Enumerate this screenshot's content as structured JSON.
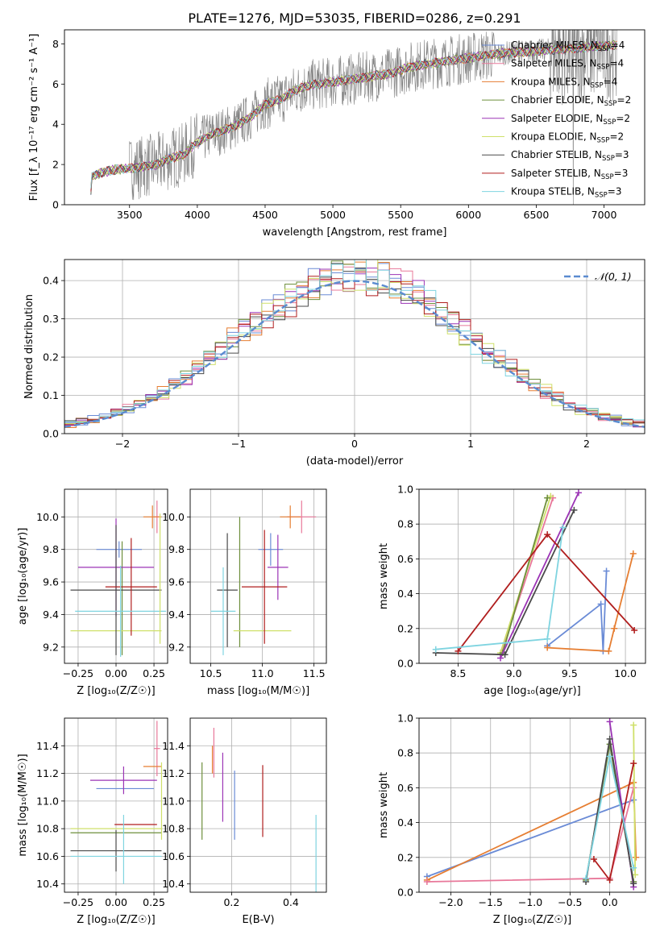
{
  "figure_title": "PLATE=1276, MJD=53035, FIBERID=0286, z=0.291",
  "chart_data": [
    {
      "id": "spectrum",
      "type": "line",
      "xlabel": "wavelength [Angstrom, rest frame]",
      "ylabel": "Flux [f_λ 10⁻¹⁷ erg cm⁻² s⁻¹ A⁻¹]",
      "xlim": [
        3020,
        7300
      ],
      "ylim": [
        0,
        8.7
      ],
      "xticks": [
        "3500",
        "4000",
        "4500",
        "5000",
        "5500",
        "6000",
        "6500",
        "7000"
      ],
      "yticks": [
        "0",
        "2",
        "4",
        "6",
        "8"
      ],
      "grid": false,
      "legend": "right",
      "data_color": "#808080",
      "data_points": [
        [
          3210,
          0
        ],
        [
          3220,
          1.4
        ],
        [
          3300,
          1.6
        ],
        [
          3400,
          1.75
        ],
        [
          3500,
          1.8
        ],
        [
          3600,
          1.9
        ],
        [
          3700,
          2.0
        ],
        [
          3800,
          2.3
        ],
        [
          3900,
          2.5
        ],
        [
          4000,
          3.1
        ],
        [
          4100,
          3.5
        ],
        [
          4200,
          3.7
        ],
        [
          4300,
          4.0
        ],
        [
          4400,
          4.4
        ],
        [
          4500,
          5.0
        ],
        [
          4600,
          5.2
        ],
        [
          4700,
          5.6
        ],
        [
          4800,
          5.9
        ],
        [
          4900,
          6.0
        ],
        [
          5000,
          6.1
        ],
        [
          5100,
          6.2
        ],
        [
          5200,
          6.3
        ],
        [
          5300,
          6.4
        ],
        [
          5400,
          6.5
        ],
        [
          5500,
          6.7
        ],
        [
          5600,
          6.9
        ],
        [
          5700,
          7.0
        ],
        [
          5800,
          7.1
        ],
        [
          5900,
          7.2
        ],
        [
          6000,
          7.3
        ],
        [
          6100,
          7.4
        ],
        [
          6200,
          7.5
        ],
        [
          6300,
          7.55
        ],
        [
          6400,
          7.6
        ],
        [
          6500,
          7.65
        ],
        [
          6600,
          7.7
        ],
        [
          6700,
          7.75
        ],
        [
          6800,
          7.8
        ],
        [
          6900,
          7.85
        ],
        [
          7000,
          7.9
        ],
        [
          7100,
          7.95
        ]
      ],
      "series": [
        {
          "label_plain": "Chabrier MILES, N",
          "sub": "SSP",
          "suffix": "=4",
          "color": "#6a8bd6"
        },
        {
          "label_plain": "Salpeter MILES, N",
          "sub": "SSP",
          "suffix": "=4",
          "color": "#e8789a"
        },
        {
          "label_plain": "Kroupa MILES, N",
          "sub": "SSP",
          "suffix": "=4",
          "color": "#e67e32"
        },
        {
          "label_plain": "Chabrier ELODIE, N",
          "sub": "SSP",
          "suffix": "=2",
          "color": "#6e8f3c"
        },
        {
          "label_plain": "Salpeter ELODIE, N",
          "sub": "SSP",
          "suffix": "=2",
          "color": "#9b33b5"
        },
        {
          "label_plain": "Kroupa ELODIE, N",
          "sub": "SSP",
          "suffix": "=2",
          "color": "#cfe06a"
        },
        {
          "label_plain": "Chabrier STELIB, N",
          "sub": "SSP",
          "suffix": "=3",
          "color": "#4a4a4a"
        },
        {
          "label_plain": "Salpeter STELIB, N",
          "sub": "SSP",
          "suffix": "=3",
          "color": "#b01e1e"
        },
        {
          "label_plain": "Kroupa STELIB, N",
          "sub": "SSP",
          "suffix": "=3",
          "color": "#7fd4e0"
        }
      ]
    },
    {
      "id": "residuals",
      "type": "histogram",
      "xlabel": "(data-model)/error",
      "ylabel": "Normed distribution",
      "xlim": [
        -2.5,
        2.5
      ],
      "ylim": [
        0,
        0.455
      ],
      "xticks": [
        "−2",
        "−1",
        "0",
        "1",
        "2"
      ],
      "yticks": [
        "0.0",
        "0.1",
        "0.2",
        "0.3",
        "0.4"
      ],
      "grid": true,
      "legend": "top-right",
      "normal_label": "𝒩(0, 1)",
      "normal_color": "#5b8bd0",
      "bins": [
        -2.5,
        2.5,
        50
      ]
    },
    {
      "id": "age_vs_Z",
      "type": "errorbar",
      "xlabel": "Z [log₁₀(Z/Z☉)]",
      "ylabel": "age  [log₁₀(age/yr)]",
      "xlim": [
        -0.34,
        0.34
      ],
      "ylim": [
        9.1,
        10.17
      ],
      "xticks": [
        "−0.25",
        "0.00",
        "0.25"
      ],
      "yticks": [
        "9.2",
        "9.4",
        "9.6",
        "9.8",
        "10.0"
      ],
      "grid": true,
      "points": [
        {
          "color": "#6a8bd6",
          "x": 0.02,
          "xerr": 0.15,
          "y": 9.8,
          "yerr": 0.05
        },
        {
          "color": "#e8789a",
          "x": 0.27,
          "xerr": 0.02,
          "y": 10.0,
          "yerr": 0.1
        },
        {
          "color": "#e67e32",
          "x": 0.24,
          "xerr": 0.06,
          "y": 10.0,
          "yerr": 0.07
        },
        {
          "color": "#6e8f3c",
          "x": 0.04,
          "xerr": 0.0,
          "y": 9.5,
          "yerr": 0.35
        },
        {
          "color": "#9b33b5",
          "x": 0.0,
          "xerr": 0.25,
          "y": 9.69,
          "yerr": 0.3
        },
        {
          "color": "#cfe06a",
          "x": 0.0,
          "xerr": 0.3,
          "y": 9.3,
          "yerr": 0.0
        },
        {
          "color": "#4a4a4a",
          "x": 0.0,
          "xerr": 0.3,
          "y": 9.55,
          "yerr": 0.4
        },
        {
          "color": "#b01e1e",
          "x": 0.1,
          "xerr": 0.17,
          "y": 9.57,
          "yerr": 0.3
        },
        {
          "color": "#7fd4e0",
          "x": 0.03,
          "xerr": 0.3,
          "y": 9.42,
          "yerr": 0.28
        },
        {
          "color": "#cfe06a",
          "x": 0.29,
          "xerr": 0.0,
          "y": 9.62,
          "yerr": 0.4
        }
      ]
    },
    {
      "id": "age_vs_mass",
      "type": "errorbar",
      "xlabel": "mass [log₁₀(M/M☉)]",
      "ylabel": "",
      "xlim": [
        10.3,
        11.62
      ],
      "ylim": [
        9.1,
        10.17
      ],
      "xticks": [
        "10.5",
        "11.0",
        "11.5"
      ],
      "yticks": [
        "9.2",
        "9.4",
        "9.6",
        "9.8",
        "10.0"
      ],
      "grid": true,
      "points": [
        {
          "color": "#6a8bd6",
          "x": 11.08,
          "xerr": 0.12,
          "y": 9.8,
          "yerr": 0.1
        },
        {
          "color": "#e8789a",
          "x": 11.38,
          "xerr": 0.14,
          "y": 10.0,
          "yerr": 0.1
        },
        {
          "color": "#e67e32",
          "x": 11.27,
          "xerr": 0.1,
          "y": 10.0,
          "yerr": 0.07
        },
        {
          "color": "#6e8f3c",
          "x": 10.78,
          "xerr": 0.0,
          "y": 9.6,
          "yerr": 0.4
        },
        {
          "color": "#9b33b5",
          "x": 11.15,
          "xerr": 0.1,
          "y": 9.69,
          "yerr": 0.2
        },
        {
          "color": "#cfe06a",
          "x": 11.0,
          "xerr": 0.28,
          "y": 9.3,
          "yerr": 0.0
        },
        {
          "color": "#4a4a4a",
          "x": 10.66,
          "xerr": 0.1,
          "y": 9.55,
          "yerr": 0.35
        },
        {
          "color": "#b01e1e",
          "x": 11.02,
          "xerr": 0.22,
          "y": 9.57,
          "yerr": 0.35
        },
        {
          "color": "#7fd4e0",
          "x": 10.62,
          "xerr": 0.12,
          "y": 9.42,
          "yerr": 0.27
        }
      ]
    },
    {
      "id": "weight_vs_age",
      "type": "line",
      "xlabel": "age  [log₁₀(age/yr)]",
      "ylabel": "mass weight",
      "xlim": [
        8.15,
        10.18
      ],
      "ylim": [
        0.0,
        1.0
      ],
      "xticks": [
        "8.5",
        "9.0",
        "9.5",
        "10.0"
      ],
      "yticks": [
        "0.0",
        "0.2",
        "0.4",
        "0.6",
        "0.8",
        "1.0"
      ],
      "grid": true,
      "series": [
        {
          "color": "#6a8bd6",
          "points": [
            [
              9.3,
              0.1
            ],
            [
              9.78,
              0.34
            ],
            [
              9.8,
              0.07
            ],
            [
              9.83,
              0.53
            ]
          ]
        },
        {
          "color": "#e67e32",
          "points": [
            [
              9.3,
              0.09
            ],
            [
              9.85,
              0.07
            ],
            [
              9.9,
              0.2
            ],
            [
              10.07,
              0.63
            ]
          ]
        },
        {
          "color": "#e8789a",
          "points": [
            [
              8.88,
              0.05
            ],
            [
              9.35,
              0.95
            ]
          ]
        },
        {
          "color": "#cfe06a",
          "points": [
            [
              8.88,
              0.06
            ],
            [
              9.33,
              0.96
            ]
          ]
        },
        {
          "color": "#6e8f3c",
          "points": [
            [
              8.9,
              0.06
            ],
            [
              9.3,
              0.95
            ]
          ]
        },
        {
          "color": "#9b33b5",
          "points": [
            [
              8.88,
              0.03
            ],
            [
              9.58,
              0.98
            ]
          ]
        },
        {
          "color": "#4a4a4a",
          "points": [
            [
              8.3,
              0.06
            ],
            [
              8.92,
              0.05
            ],
            [
              9.54,
              0.88
            ]
          ]
        },
        {
          "color": "#b01e1e",
          "points": [
            [
              8.5,
              0.07
            ],
            [
              9.3,
              0.74
            ],
            [
              10.08,
              0.19
            ]
          ]
        },
        {
          "color": "#7fd4e0",
          "points": [
            [
              8.3,
              0.08
            ],
            [
              9.3,
              0.14
            ],
            [
              9.44,
              0.78
            ]
          ]
        }
      ]
    },
    {
      "id": "mass_vs_Z",
      "type": "errorbar",
      "xlabel": "Z [log₁₀(Z/Z☉)]",
      "ylabel": "mass [log₁₀(M/M☉)]",
      "xlim": [
        -0.34,
        0.34
      ],
      "ylim": [
        10.34,
        11.6
      ],
      "xticks": [
        "−0.25",
        "0.00",
        "0.25"
      ],
      "yticks": [
        "10.4",
        "10.6",
        "10.8",
        "11.0",
        "11.2",
        "11.4"
      ],
      "grid": true,
      "points": [
        {
          "color": "#6a8bd6",
          "x": 0.06,
          "xerr": 0.19,
          "y": 11.09,
          "yerr": 0.0
        },
        {
          "color": "#e8789a",
          "x": 0.27,
          "xerr": 0.02,
          "y": 11.38,
          "yerr": 0.2
        },
        {
          "color": "#e67e32",
          "x": 0.24,
          "xerr": 0.06,
          "y": 11.25,
          "yerr": 0.0
        },
        {
          "color": "#6e8f3c",
          "x": 0.0,
          "xerr": 0.3,
          "y": 10.77,
          "yerr": 0.0
        },
        {
          "color": "#9b33b5",
          "x": 0.05,
          "xerr": 0.22,
          "y": 11.15,
          "yerr": 0.1
        },
        {
          "color": "#cfe06a",
          "x": 0.0,
          "xerr": 0.3,
          "y": 10.8,
          "yerr": 0.0
        },
        {
          "color": "#4a4a4a",
          "x": 0.0,
          "xerr": 0.3,
          "y": 10.64,
          "yerr": 0.15
        },
        {
          "color": "#b01e1e",
          "x": 0.13,
          "xerr": 0.14,
          "y": 10.83,
          "yerr": 0.0
        },
        {
          "color": "#7fd4e0",
          "x": 0.0,
          "xerr": 0.3,
          "y": 10.6,
          "yerr": 0.0
        },
        {
          "color": "#7fd4e0",
          "x": 0.05,
          "xerr": 0.0,
          "y": 10.65,
          "yerr": 0.25
        },
        {
          "color": "#cfe06a",
          "x": 0.3,
          "xerr": 0.0,
          "y": 11.0,
          "yerr": 0.28
        }
      ]
    },
    {
      "id": "mass_vs_ebv",
      "type": "errorbar",
      "xlabel": "E(B-V)",
      "ylabel": "",
      "xlim": [
        0.06,
        0.52
      ],
      "ylim": [
        10.34,
        11.6
      ],
      "xticks": [
        "0.2",
        "0.4"
      ],
      "yticks": [
        "10.4",
        "10.6",
        "10.8",
        "11.0",
        "11.2",
        "11.4"
      ],
      "grid": true,
      "points": [
        {
          "color": "#6e8f3c",
          "x": 0.1,
          "xerr": 0.0,
          "y": 11.0,
          "yerr": 0.28
        },
        {
          "color": "#e8789a",
          "x": 0.14,
          "xerr": 0.0,
          "y": 11.35,
          "yerr": 0.18
        },
        {
          "color": "#e67e32",
          "x": 0.135,
          "xerr": 0.0,
          "y": 11.3,
          "yerr": 0.1
        },
        {
          "color": "#9b33b5",
          "x": 0.17,
          "xerr": 0.0,
          "y": 11.1,
          "yerr": 0.25
        },
        {
          "color": "#6a8bd6",
          "x": 0.21,
          "xerr": 0.0,
          "y": 10.97,
          "yerr": 0.25
        },
        {
          "color": "#b01e1e",
          "x": 0.305,
          "xerr": 0.0,
          "y": 11.0,
          "yerr": 0.26
        },
        {
          "color": "#7fd4e0",
          "x": 0.485,
          "xerr": 0.0,
          "y": 10.6,
          "yerr": 0.3
        }
      ]
    },
    {
      "id": "weight_vs_Z",
      "type": "line",
      "xlabel": "Z [log₁₀(Z/Z☉)]",
      "ylabel": "mass weight",
      "xlim": [
        -2.4,
        0.45
      ],
      "ylim": [
        0.0,
        1.0
      ],
      "xticks": [
        "−2.0",
        "−1.5",
        "−1.0",
        "−0.5",
        "0.0"
      ],
      "yticks": [
        "0.0",
        "0.2",
        "0.4",
        "0.6",
        "0.8",
        "1.0"
      ],
      "grid": true,
      "series": [
        {
          "color": "#6a8bd6",
          "points": [
            [
              -2.3,
              0.09
            ],
            [
              0.3,
              0.53
            ]
          ]
        },
        {
          "color": "#e67e32",
          "points": [
            [
              -2.3,
              0.07
            ],
            [
              0.3,
              0.63
            ],
            [
              0.33,
              0.2
            ]
          ]
        },
        {
          "color": "#e8789a",
          "points": [
            [
              -2.3,
              0.06
            ],
            [
              0.0,
              0.08
            ],
            [
              0.3,
              0.6
            ]
          ]
        },
        {
          "color": "#cfe06a",
          "points": [
            [
              0.3,
              0.96
            ],
            [
              0.32,
              0.1
            ]
          ]
        },
        {
          "color": "#6e8f3c",
          "points": [
            [
              -0.3,
              0.07
            ],
            [
              0.0,
              0.85
            ],
            [
              0.3,
              0.06
            ]
          ]
        },
        {
          "color": "#9b33b5",
          "points": [
            [
              0.0,
              0.98
            ],
            [
              0.3,
              0.03
            ]
          ]
        },
        {
          "color": "#4a4a4a",
          "points": [
            [
              -0.3,
              0.06
            ],
            [
              0.0,
              0.88
            ],
            [
              0.3,
              0.05
            ]
          ]
        },
        {
          "color": "#b01e1e",
          "points": [
            [
              -0.2,
              0.19
            ],
            [
              0.0,
              0.07
            ],
            [
              0.3,
              0.74
            ]
          ]
        },
        {
          "color": "#7fd4e0",
          "points": [
            [
              -0.3,
              0.08
            ],
            [
              0.0,
              0.78
            ],
            [
              0.3,
              0.14
            ]
          ]
        }
      ]
    }
  ]
}
